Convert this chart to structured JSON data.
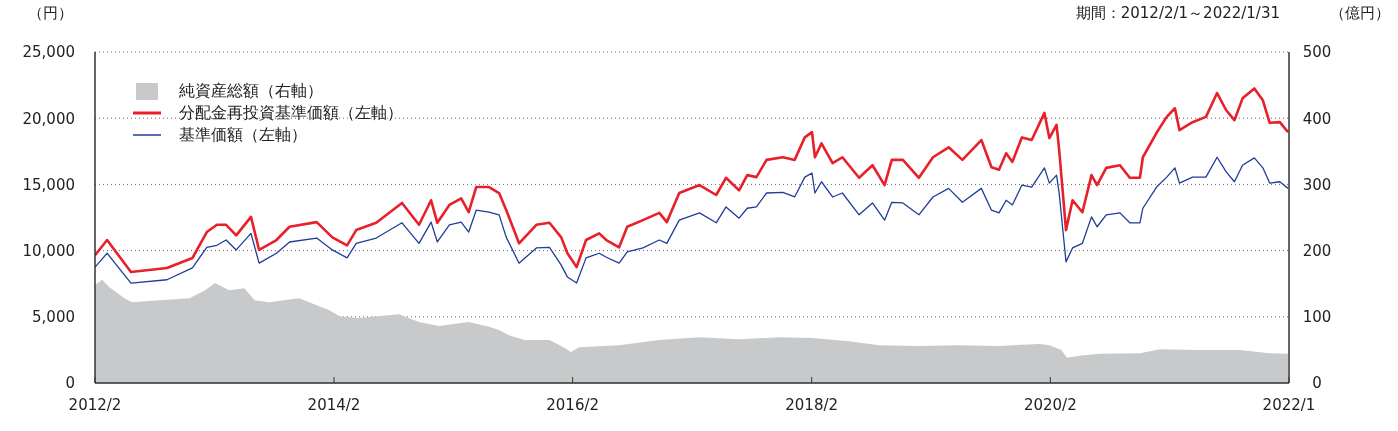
{
  "chart_data": {
    "type": "line",
    "ylabel": "（円）",
    "y2label": "（億円）",
    "annotations": [
      "期間：2012/2/1～2022/1/31"
    ],
    "xlim": [
      "2012-02-01",
      "2022-01-31"
    ],
    "xticks": [
      {
        "value": "2012-02-01",
        "label": "2012/2"
      },
      {
        "value": "2014-02-01",
        "label": "2014/2"
      },
      {
        "value": "2016-02-01",
        "label": "2016/2"
      },
      {
        "value": "2018-02-01",
        "label": "2018/2"
      },
      {
        "value": "2020-02-01",
        "label": "2020/2"
      },
      {
        "value": "2022-01-31",
        "label": "2022/1"
      }
    ],
    "ylim": [
      0,
      25000
    ],
    "yticks": [
      0,
      {
        "value": 5000,
        "label": "5,000"
      },
      {
        "value": 10000,
        "label": "10,000"
      },
      {
        "value": 15000,
        "label": "15,000"
      },
      {
        "value": 20000,
        "label": "20,000"
      },
      {
        "value": 25000,
        "label": "25,000"
      }
    ],
    "y2lim": [
      0,
      500
    ],
    "y2ticks": [
      0,
      100,
      200,
      300,
      400,
      500
    ],
    "grid": "y",
    "legend": "top left",
    "series": [
      {
        "name": "純資産総額（右軸）",
        "type": "area",
        "axis": "y2",
        "color": "#c8c9cb",
        "x": [
          "2012-02-01",
          "2012-02-23",
          "2012-03-15",
          "2012-05-01",
          "2012-05-24",
          "2012-08-16",
          "2012-11-16",
          "2013-01-03",
          "2013-02-02",
          "2013-03-17",
          "2013-05-03",
          "2013-06-03",
          "2013-07-17",
          "2013-10-17",
          "2014-01-18",
          "2014-02-18",
          "2014-04-18",
          "2014-08-19",
          "2014-10-19",
          "2014-12-19",
          "2015-03-20",
          "2015-05-21",
          "2015-06-21",
          "2015-07-21",
          "2015-09-07",
          "2015-11-22",
          "2016-01-08",
          "2016-01-27",
          "2016-02-21",
          "2016-06-22",
          "2016-10-23",
          "2017-02-23",
          "2017-06-24",
          "2017-10-24",
          "2018-02-02",
          "2018-05-26",
          "2018-08-26",
          "2018-12-26",
          "2019-04-27",
          "2019-08-28",
          "2019-12-29",
          "2020-01-29",
          "2020-03-06",
          "2020-03-23",
          "2020-04-29",
          "2020-07-01",
          "2020-11-01",
          "2021-01-02",
          "2021-05-02",
          "2021-09-03",
          "2021-12-03",
          "2022-01-28"
        ],
        "values": [
          148,
          156,
          145,
          128,
          122,
          125,
          128,
          140,
          151,
          140,
          143,
          125,
          122,
          128,
          110,
          101,
          98,
          104,
          92,
          86,
          92,
          85,
          80,
          72,
          65,
          65,
          53,
          47,
          54,
          57,
          65,
          69,
          66,
          69,
          68,
          63,
          57,
          56,
          57,
          56,
          59,
          57,
          50,
          38,
          41,
          44,
          45,
          51,
          50,
          50,
          45,
          44
        ]
      },
      {
        "name": "分配金再投資基準価額（左軸）",
        "color": "#e8202a",
        "x": [
          "2012-02-01",
          "2012-03-09",
          "2012-05-21",
          "2012-09-08",
          "2012-11-25",
          "2013-01-08",
          "2013-02-08",
          "2013-03-08",
          "2013-04-08",
          "2013-05-23",
          "2013-06-17",
          "2013-08-09",
          "2013-09-18",
          "2013-12-10",
          "2014-01-27",
          "2014-03-13",
          "2014-04-10",
          "2014-06-10",
          "2014-08-28",
          "2014-10-19",
          "2014-11-25",
          "2014-12-14",
          "2015-01-20",
          "2015-02-25",
          "2015-03-20",
          "2015-04-12",
          "2015-05-21",
          "2015-06-21",
          "2015-07-13",
          "2015-08-21",
          "2015-10-13",
          "2015-11-22",
          "2015-12-28",
          "2016-01-16",
          "2016-02-13",
          "2016-03-13",
          "2016-04-22",
          "2016-05-14",
          "2016-06-22",
          "2016-07-17",
          "2016-09-03",
          "2016-10-23",
          "2016-11-15",
          "2016-12-23",
          "2017-02-23",
          "2017-04-15",
          "2017-05-15",
          "2017-06-24",
          "2017-07-19",
          "2017-08-16",
          "2017-09-16",
          "2017-11-05",
          "2017-12-11",
          "2018-01-11",
          "2018-02-02",
          "2018-02-11",
          "2018-03-03",
          "2018-04-06",
          "2018-05-06",
          "2018-06-26",
          "2018-08-06",
          "2018-09-12",
          "2018-10-04",
          "2018-11-07",
          "2018-12-26",
          "2019-02-07",
          "2019-03-27",
          "2019-05-08",
          "2019-07-05",
          "2019-08-05",
          "2019-08-28",
          "2019-09-19",
          "2019-10-08",
          "2019-11-06",
          "2019-12-06",
          "2020-01-14",
          "2020-01-29",
          "2020-02-20",
          "2020-02-28",
          "2020-03-20",
          "2020-04-09",
          "2020-05-09",
          "2020-06-06",
          "2020-06-23",
          "2020-07-21",
          "2020-09-01",
          "2020-10-01",
          "2020-11-01",
          "2020-11-10",
          "2020-12-22",
          "2021-01-22",
          "2021-02-16",
          "2021-03-02",
          "2021-04-11",
          "2021-05-22",
          "2021-06-25",
          "2021-07-23",
          "2021-08-17",
          "2021-09-11",
          "2021-10-17",
          "2021-11-12",
          "2021-12-03",
          "2022-01-03",
          "2022-01-28"
        ],
        "values": [
          9650,
          10800,
          8380,
          8680,
          9440,
          11400,
          11950,
          11950,
          11150,
          12550,
          10050,
          10800,
          11800,
          12150,
          11000,
          10400,
          11550,
          12100,
          13600,
          11950,
          13800,
          12100,
          13450,
          13950,
          12900,
          14800,
          14800,
          14350,
          13050,
          10550,
          11950,
          12100,
          11000,
          9800,
          8750,
          10800,
          11300,
          10800,
          10250,
          11800,
          12300,
          12850,
          12150,
          14350,
          14950,
          14200,
          15500,
          14550,
          15700,
          15550,
          16850,
          17050,
          16850,
          18550,
          18950,
          17050,
          18100,
          16600,
          17050,
          15500,
          16450,
          14950,
          16850,
          16850,
          15500,
          17050,
          17800,
          16850,
          18350,
          16300,
          16100,
          17350,
          16700,
          18550,
          18350,
          20400,
          18500,
          19500,
          17600,
          11550,
          13800,
          12900,
          15700,
          14950,
          16250,
          16450,
          15500,
          15500,
          17050,
          18900,
          20100,
          20750,
          19100,
          19700,
          20100,
          21900,
          20600,
          19850,
          21500,
          22250,
          21350,
          19650,
          19700,
          18950
        ]
      },
      {
        "name": "基準価額（左軸）",
        "color": "#1f3d99",
        "x": [
          "2012-02-01",
          "2012-03-09",
          "2012-05-21",
          "2012-09-08",
          "2012-11-25",
          "2013-01-08",
          "2013-02-08",
          "2013-03-08",
          "2013-04-08",
          "2013-05-23",
          "2013-06-17",
          "2013-08-09",
          "2013-09-18",
          "2013-12-10",
          "2014-01-27",
          "2014-03-13",
          "2014-04-10",
          "2014-06-10",
          "2014-08-28",
          "2014-10-19",
          "2014-11-25",
          "2014-12-14",
          "2015-01-20",
          "2015-02-25",
          "2015-03-20",
          "2015-04-12",
          "2015-05-21",
          "2015-06-21",
          "2015-07-13",
          "2015-08-21",
          "2015-10-13",
          "2015-11-22",
          "2015-12-28",
          "2016-01-16",
          "2016-02-13",
          "2016-03-13",
          "2016-04-22",
          "2016-05-14",
          "2016-06-22",
          "2016-07-17",
          "2016-09-03",
          "2016-10-23",
          "2016-11-15",
          "2016-12-23",
          "2017-02-23",
          "2017-04-15",
          "2017-05-15",
          "2017-06-24",
          "2017-07-19",
          "2017-08-16",
          "2017-09-16",
          "2017-11-05",
          "2017-12-11",
          "2018-01-11",
          "2018-02-02",
          "2018-02-11",
          "2018-03-03",
          "2018-04-06",
          "2018-05-06",
          "2018-06-26",
          "2018-08-06",
          "2018-09-12",
          "2018-10-04",
          "2018-11-07",
          "2018-12-26",
          "2019-02-07",
          "2019-03-27",
          "2019-05-08",
          "2019-07-05",
          "2019-08-05",
          "2019-08-28",
          "2019-09-19",
          "2019-10-08",
          "2019-11-06",
          "2019-12-06",
          "2020-01-14",
          "2020-01-29",
          "2020-02-20",
          "2020-02-28",
          "2020-03-20",
          "2020-04-09",
          "2020-05-09",
          "2020-06-06",
          "2020-06-23",
          "2020-07-21",
          "2020-09-01",
          "2020-10-01",
          "2020-11-01",
          "2020-11-10",
          "2020-12-22",
          "2021-01-22",
          "2021-02-16",
          "2021-03-02",
          "2021-04-11",
          "2021-05-22",
          "2021-06-25",
          "2021-07-23",
          "2021-08-17",
          "2021-09-11",
          "2021-10-17",
          "2021-11-12",
          "2021-12-03",
          "2022-01-03",
          "2022-01-28"
        ],
        "values": [
          8750,
          9800,
          7550,
          7800,
          8700,
          10250,
          10400,
          10800,
          10050,
          11300,
          9050,
          9800,
          10650,
          10950,
          10050,
          9450,
          10550,
          10950,
          12100,
          10550,
          12150,
          10650,
          11950,
          12150,
          11400,
          13050,
          12900,
          12700,
          11000,
          9050,
          10200,
          10250,
          8900,
          8000,
          7550,
          9450,
          9800,
          9500,
          9050,
          9900,
          10200,
          10800,
          10550,
          12300,
          12850,
          12100,
          13300,
          12450,
          13200,
          13300,
          14350,
          14400,
          14050,
          15550,
          15850,
          14350,
          15200,
          14050,
          14350,
          12700,
          13600,
          12300,
          13650,
          13600,
          12700,
          14050,
          14700,
          13650,
          14700,
          13050,
          12850,
          13800,
          13450,
          14950,
          14800,
          16250,
          15100,
          15700,
          14350,
          9150,
          10200,
          10550,
          12550,
          11800,
          12700,
          12850,
          12100,
          12100,
          13200,
          14800,
          15550,
          16250,
          15100,
          15550,
          15550,
          17050,
          15950,
          15200,
          16450,
          17000,
          16250,
          15100,
          15200,
          14700
        ]
      }
    ]
  }
}
